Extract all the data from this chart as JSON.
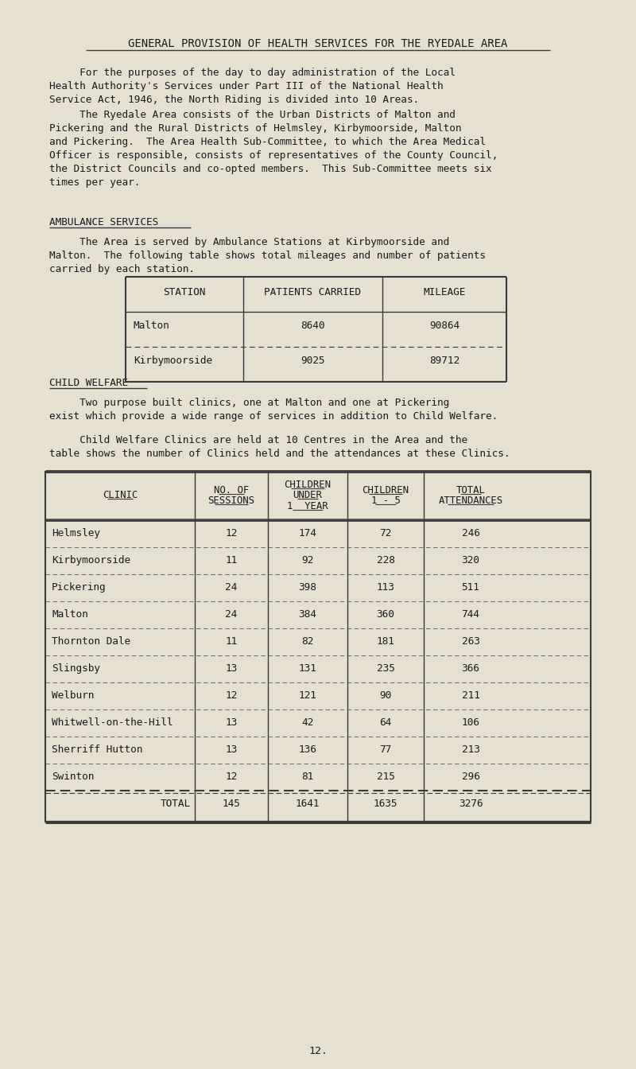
{
  "bg_color": "#e5e0d0",
  "title": "GENERAL PROVISION OF HEALTH SERVICES FOR THE RYEDALE AREA",
  "para1": "     For the purposes of the day to day administration of the Local\nHealth Authority's Services under Part III of the National Health\nService Act, 1946, the North Riding is divided into 10 Areas.",
  "para2": "     The Ryedale Area consists of the Urban Districts of Malton and\nPickering and the Rural Districts of Helmsley, Kirbymoorside, Malton\nand Pickering.  The Area Health Sub-Committee, to which the Area Medical\nOfficer is responsible, consists of representatives of the County Council,\nthe District Councils and co-opted members.  This Sub-Committee meets six\ntimes per year.",
  "section1": "AMBULANCE SERVICES",
  "para3": "     The Area is served by Ambulance Stations at Kirbymoorside and\nMalton.  The following table shows total mileages and number of patients\ncarried by each station.",
  "amb_headers": [
    "STATION",
    "PATIENTS CARRIED",
    "MILEAGE"
  ],
  "amb_rows": [
    [
      "Malton",
      "8640",
      "90864"
    ],
    [
      "Kirbymoorside",
      "9025",
      "89712"
    ]
  ],
  "section2": "CHILD WELFARE",
  "para4": "     Two purpose built clinics, one at Malton and one at Pickering\nexist which provide a wide range of services in addition to Child Welfare.",
  "para5": "     Child Welfare Clinics are held at 10 Centres in the Area and the\ntable shows the number of Clinics held and the attendances at these Clinics.",
  "clinic_headers_line1": [
    "CLINIC",
    "NO. OF",
    "CHILDREN",
    "CHILDREN",
    "TOTAL"
  ],
  "clinic_headers_line2": [
    "",
    "SESSIONS",
    "UNDER",
    "1 - 5",
    "ATTENDANCES"
  ],
  "clinic_headers_line3": [
    "",
    "",
    "1  YEAR",
    "",
    ""
  ],
  "clinic_rows": [
    [
      "Helmsley",
      "12",
      "174",
      "72",
      "246"
    ],
    [
      "Kirbymoorside",
      "11",
      "92",
      "228",
      "320"
    ],
    [
      "Pickering",
      "24",
      "398",
      "113",
      "511"
    ],
    [
      "Malton",
      "24",
      "384",
      "360",
      "744"
    ],
    [
      "Thornton Dale",
      "11",
      "82",
      "181",
      "263"
    ],
    [
      "Slingsby",
      "13",
      "131",
      "235",
      "366"
    ],
    [
      "Welburn",
      "12",
      "121",
      "90",
      "211"
    ],
    [
      "Whitwell-on-the-Hill",
      "13",
      "42",
      "64",
      "106"
    ],
    [
      "Sherriff Hutton",
      "13",
      "136",
      "77",
      "213"
    ],
    [
      "Swinton",
      "12",
      "81",
      "215",
      "296"
    ]
  ],
  "clinic_total": [
    "TOTAL",
    "145",
    "1641",
    "1635",
    "3276"
  ],
  "page_number": "12.",
  "text_color": "#1a1a1a",
  "line_color": "#3a3a3a"
}
